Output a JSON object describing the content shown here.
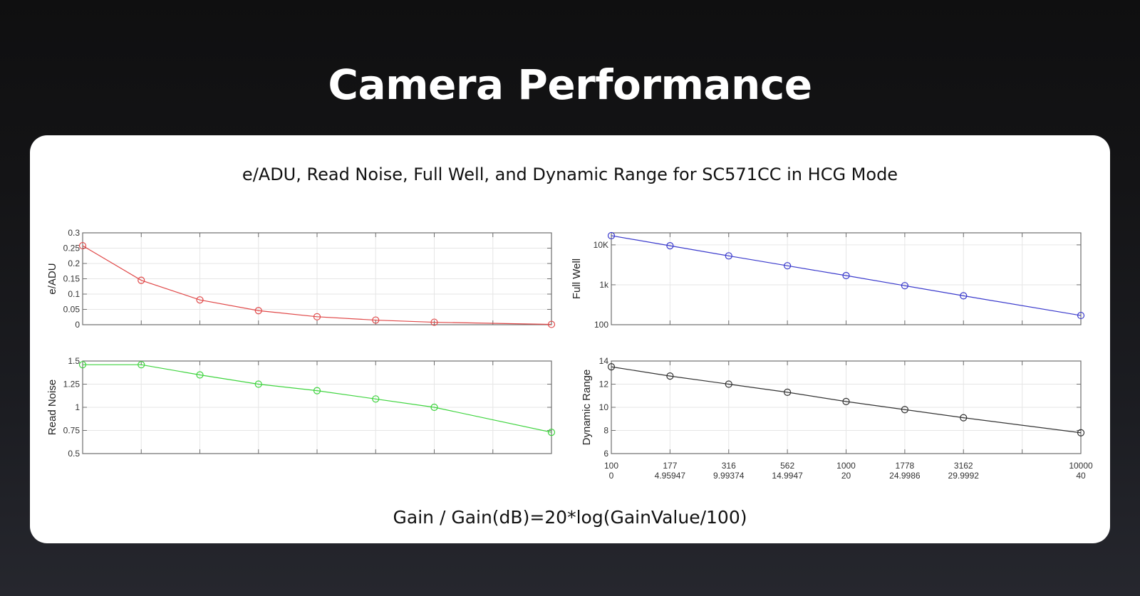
{
  "page": {
    "title": "Camera Performance"
  },
  "card": {
    "title": "e/ADU, Read Noise, Full Well, and Dynamic Range for SC571CC in HCG Mode",
    "footer": "Gain / Gain(dB)=20*log(GainValue/100)"
  },
  "colors": {
    "e_adu": "#e04848",
    "read_noise": "#3ed43e",
    "full_well": "#3a3acc",
    "dynamic_range": "#333333",
    "frame": "#6e6e6e",
    "grid": "#e6e6e6"
  },
  "chart_data": [
    {
      "type": "line",
      "id": "e_adu",
      "ylabel": "e/ADU",
      "xlabel": "Gain / Gain(dB)=20*log(GainValue/100)",
      "x_gain": [
        100,
        177,
        316,
        562,
        1000,
        1778,
        3162,
        10000
      ],
      "x_gain_db": [
        "0",
        "4.95947",
        "9.99374",
        "14.9947",
        "20",
        "24.9986",
        "29.9992",
        "40"
      ],
      "values": [
        0.258,
        0.145,
        0.081,
        0.046,
        0.026,
        0.015,
        0.008,
        0.001
      ],
      "yscale": "linear",
      "ylim": [
        0,
        0.3
      ],
      "yticks": [
        "0",
        "0.05",
        "0.1",
        "0.15",
        "0.2",
        "0.25",
        "0.3"
      ],
      "ytick_values": [
        0,
        0.05,
        0.1,
        0.15,
        0.2,
        0.25,
        0.3
      ],
      "grid": true,
      "marker": "circle"
    },
    {
      "type": "line",
      "id": "read_noise",
      "ylabel": "Read Noise",
      "x_gain": [
        100,
        177,
        316,
        562,
        1000,
        1778,
        3162,
        10000
      ],
      "x_gain_db": [
        "0",
        "4.95947",
        "9.99374",
        "14.9947",
        "20",
        "24.9986",
        "29.9992",
        "40"
      ],
      "values": [
        1.46,
        1.46,
        1.35,
        1.25,
        1.18,
        1.09,
        1.0,
        0.73
      ],
      "yscale": "linear",
      "ylim": [
        0.5,
        1.5
      ],
      "yticks": [
        "0.5",
        "0.75",
        "1",
        "1.25",
        "1.5"
      ],
      "ytick_values": [
        0.5,
        0.75,
        1,
        1.25,
        1.5
      ],
      "grid": true,
      "marker": "circle"
    },
    {
      "type": "line",
      "id": "full_well",
      "ylabel": "Full Well",
      "x_gain": [
        100,
        177,
        316,
        562,
        1000,
        1778,
        3162,
        10000
      ],
      "x_gain_db": [
        "0",
        "4.95947",
        "9.99374",
        "14.9947",
        "20",
        "24.9986",
        "29.9992",
        "40"
      ],
      "values": [
        17000,
        9500,
        5300,
        3000,
        1700,
        950,
        530,
        170
      ],
      "yscale": "log",
      "ylim": [
        100,
        20000
      ],
      "yticks": [
        "100",
        "1k",
        "10K"
      ],
      "ytick_values": [
        100,
        1000,
        10000
      ],
      "grid": true,
      "marker": "circle"
    },
    {
      "type": "line",
      "id": "dynamic_range",
      "ylabel": "Dynamic Range",
      "x_gain": [
        100,
        177,
        316,
        562,
        1000,
        1778,
        3162,
        10000
      ],
      "x_gain_db": [
        "0",
        "4.95947",
        "9.99374",
        "14.9947",
        "20",
        "24.9986",
        "29.9992",
        "40"
      ],
      "values": [
        13.5,
        12.7,
        12.0,
        11.3,
        10.5,
        9.8,
        9.1,
        7.8
      ],
      "yscale": "linear",
      "ylim": [
        6,
        14
      ],
      "yticks": [
        "6",
        "8",
        "10",
        "12",
        "14"
      ],
      "ytick_values": [
        6,
        8,
        10,
        12,
        14
      ],
      "grid": true,
      "marker": "circle"
    }
  ]
}
